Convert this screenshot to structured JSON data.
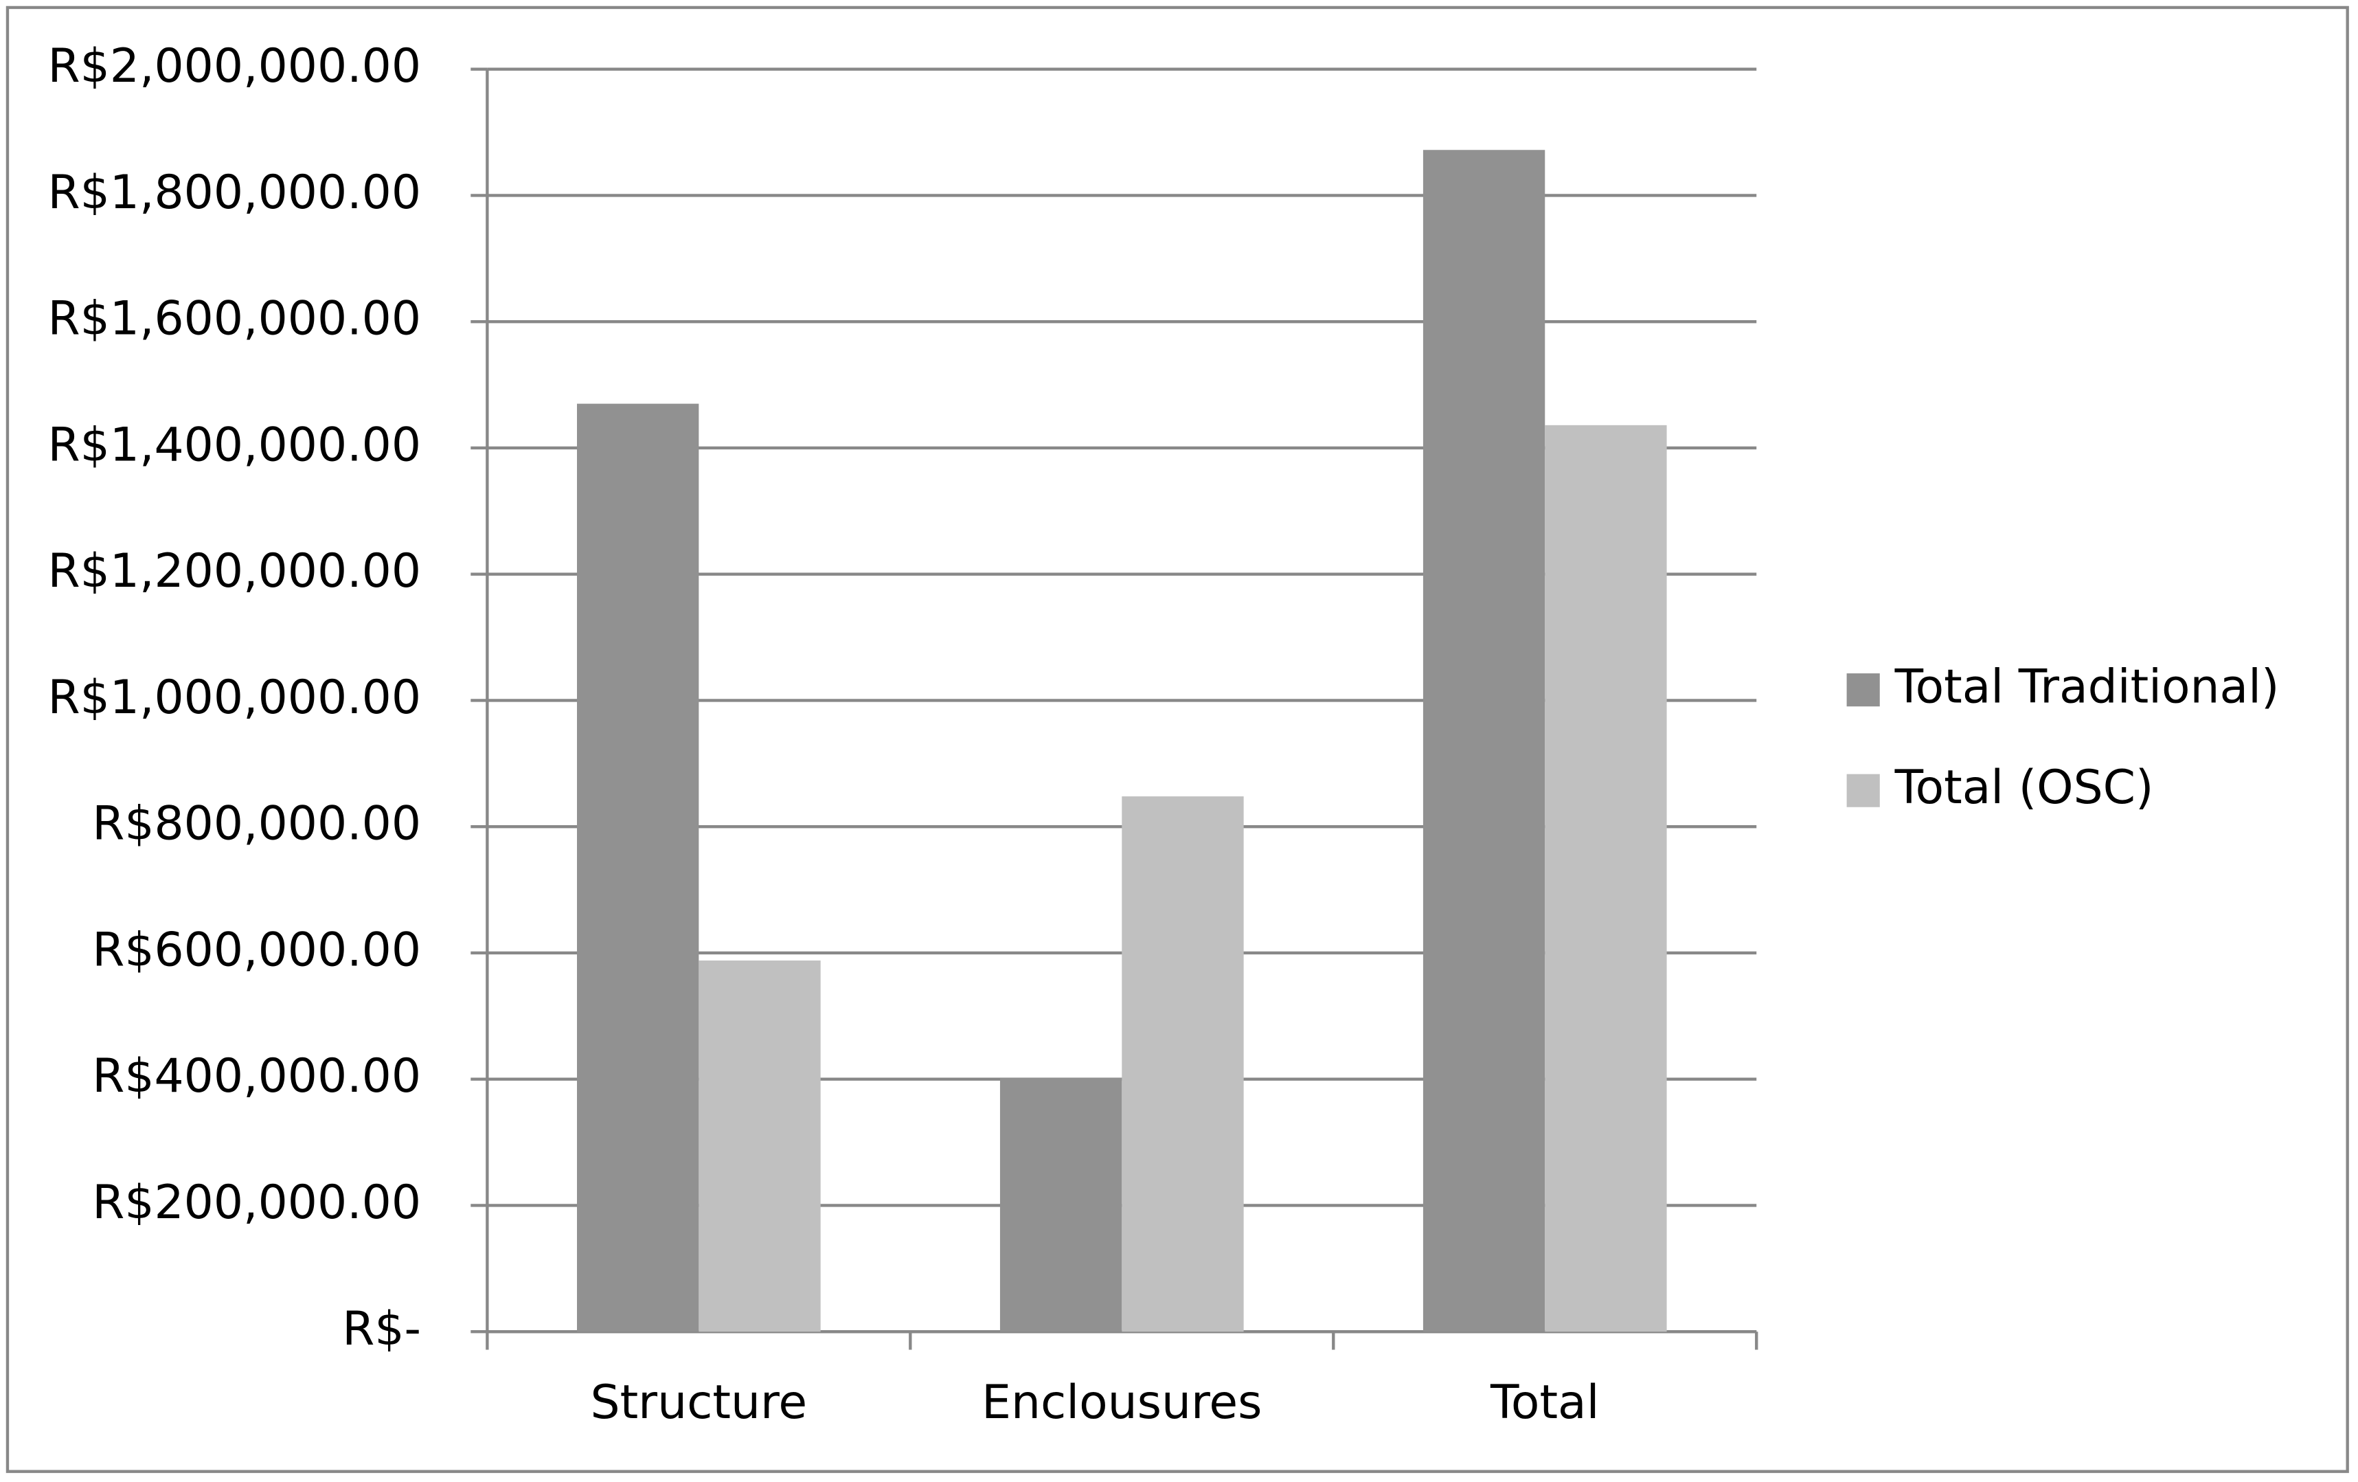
{
  "chart_data": {
    "type": "bar",
    "categories": [
      "Structure",
      "Enclousures",
      "Total"
    ],
    "series": [
      {
        "name": "Total Traditional)",
        "color": "#919191",
        "values": [
          1470000,
          402000,
          1872000
        ]
      },
      {
        "name": "Total (OSC)",
        "color": "#c0c0c0",
        "values": [
          588000,
          848000,
          1436000
        ]
      }
    ],
    "ylim": [
      0,
      2000000
    ],
    "yticks": [
      {
        "value": 0,
        "label": "R$-"
      },
      {
        "value": 200000,
        "label": "R$200,000.00"
      },
      {
        "value": 400000,
        "label": "R$400,000.00"
      },
      {
        "value": 600000,
        "label": "R$600,000.00"
      },
      {
        "value": 800000,
        "label": "R$800,000.00"
      },
      {
        "value": 1000000,
        "label": "R$1,000,000.00"
      },
      {
        "value": 1200000,
        "label": "R$1,200,000.00"
      },
      {
        "value": 1400000,
        "label": "R$1,400,000.00"
      },
      {
        "value": 1600000,
        "label": "R$1,600,000.00"
      },
      {
        "value": 1800000,
        "label": "R$1,800,000.00"
      },
      {
        "value": 2000000,
        "label": "R$2,000,000.00"
      }
    ],
    "grid": true,
    "legend": "right"
  }
}
